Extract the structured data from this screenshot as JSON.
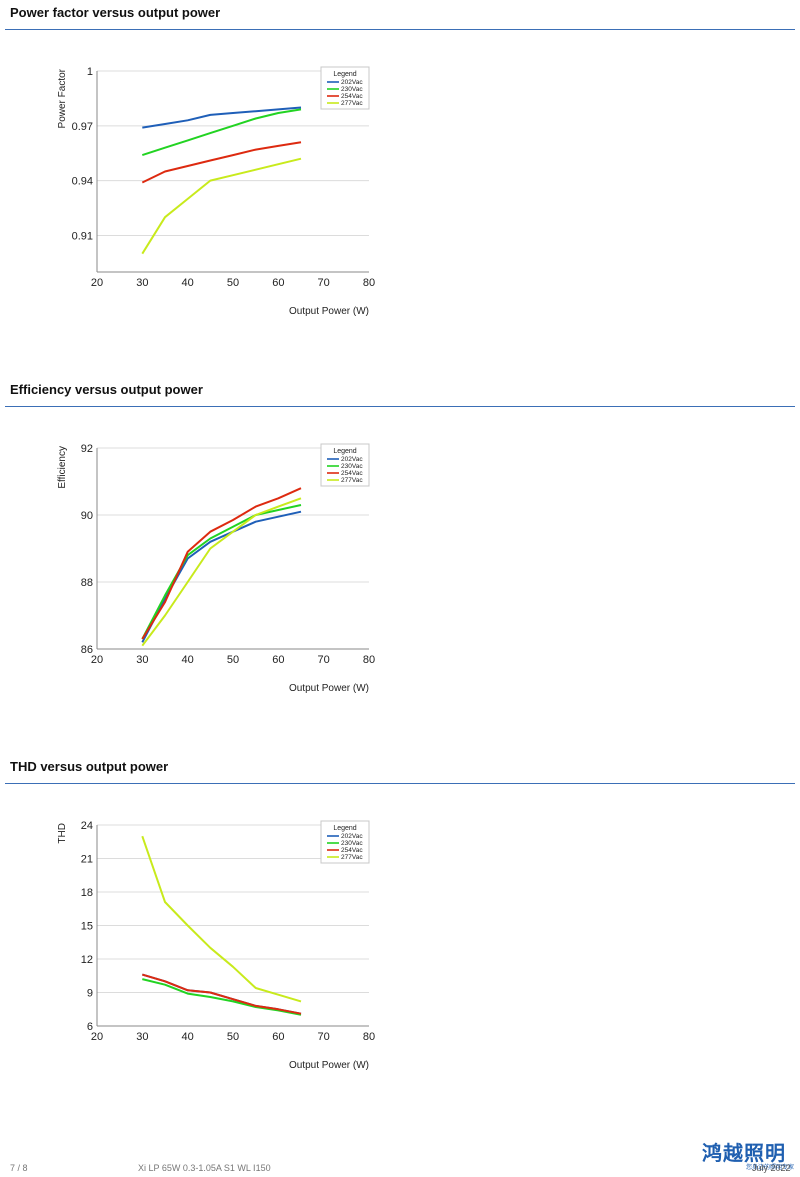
{
  "sections": [
    {
      "title": "Power factor versus output power"
    },
    {
      "title": "Efficiency versus output power"
    },
    {
      "title": "THD versus output power"
    }
  ],
  "chart_data": [
    {
      "type": "line",
      "ylabel": "Power Factor",
      "xlabel": "Output Power (W)",
      "xlim": [
        20,
        80
      ],
      "ylim": [
        0.89,
        1
      ],
      "xticks": [
        "20",
        "30",
        "40",
        "50",
        "60",
        "70",
        "80"
      ],
      "yticks": [
        {
          "v": 1,
          "label": "1"
        },
        {
          "v": 0.97,
          "label": "0.97"
        },
        {
          "v": 0.94,
          "label": "0.94"
        },
        {
          "v": 0.91,
          "label": "0.91"
        }
      ],
      "legend_title": "Legend",
      "legend_position": "top-right",
      "series": [
        {
          "name": "202Vac",
          "color": "#1f5fb8",
          "x": [
            30,
            35,
            40,
            45,
            50,
            55,
            60,
            65
          ],
          "y": [
            0.969,
            0.971,
            0.973,
            0.976,
            0.977,
            0.978,
            0.979,
            0.98
          ]
        },
        {
          "name": "230Vac",
          "color": "#22d322",
          "x": [
            30,
            35,
            40,
            45,
            50,
            55,
            60,
            65
          ],
          "y": [
            0.954,
            0.958,
            0.962,
            0.966,
            0.97,
            0.974,
            0.977,
            0.979
          ]
        },
        {
          "name": "254Vac",
          "color": "#dd2a10",
          "x": [
            30,
            35,
            40,
            45,
            50,
            55,
            60,
            65
          ],
          "y": [
            0.939,
            0.945,
            0.948,
            0.951,
            0.954,
            0.957,
            0.959,
            0.961
          ]
        },
        {
          "name": "277Vac",
          "color": "#c8ea1c",
          "x": [
            30,
            35,
            40,
            45,
            50,
            55,
            60,
            65
          ],
          "y": [
            0.9,
            0.92,
            0.93,
            0.94,
            0.943,
            0.946,
            0.949,
            0.952
          ]
        }
      ]
    },
    {
      "type": "line",
      "ylabel": "Efficiency",
      "xlabel": "Output Power (W)",
      "xlim": [
        20,
        80
      ],
      "ylim": [
        86,
        92
      ],
      "xticks": [
        "20",
        "30",
        "40",
        "50",
        "60",
        "70",
        "80"
      ],
      "yticks": [
        {
          "v": 92,
          "label": "92"
        },
        {
          "v": 90,
          "label": "90"
        },
        {
          "v": 88,
          "label": "88"
        },
        {
          "v": 86,
          "label": "86"
        }
      ],
      "legend_title": "Legend",
      "legend_position": "top-right",
      "series": [
        {
          "name": "202Vac",
          "color": "#1f5fb8",
          "x": [
            30,
            35,
            40,
            45,
            50,
            55,
            60,
            65
          ],
          "y": [
            86.2,
            87.5,
            88.7,
            89.2,
            89.5,
            89.8,
            89.95,
            90.1
          ]
        },
        {
          "name": "230Vac",
          "color": "#22d322",
          "x": [
            30,
            35,
            40,
            45,
            50,
            55,
            60,
            65
          ],
          "y": [
            86.3,
            87.6,
            88.8,
            89.3,
            89.65,
            90.0,
            90.15,
            90.3
          ]
        },
        {
          "name": "254Vac",
          "color": "#dd2a10",
          "x": [
            30,
            35,
            40,
            45,
            50,
            55,
            60,
            65
          ],
          "y": [
            86.3,
            87.4,
            88.9,
            89.5,
            89.85,
            90.25,
            90.5,
            90.8
          ]
        },
        {
          "name": "277Vac",
          "color": "#c8ea1c",
          "x": [
            30,
            35,
            40,
            45,
            50,
            55,
            60,
            65
          ],
          "y": [
            86.1,
            87.0,
            88.0,
            89.0,
            89.5,
            90.0,
            90.25,
            90.5
          ]
        }
      ]
    },
    {
      "type": "line",
      "ylabel": "THD",
      "xlabel": "Output Power (W)",
      "xlim": [
        20,
        80
      ],
      "ylim": [
        6,
        24
      ],
      "xticks": [
        "20",
        "30",
        "40",
        "50",
        "60",
        "70",
        "80"
      ],
      "yticks": [
        {
          "v": 24,
          "label": "24"
        },
        {
          "v": 21,
          "label": "21"
        },
        {
          "v": 18,
          "label": "18"
        },
        {
          "v": 15,
          "label": "15"
        },
        {
          "v": 12,
          "label": "12"
        },
        {
          "v": 9,
          "label": "9"
        },
        {
          "v": 6,
          "label": "6"
        }
      ],
      "legend_title": "Legend",
      "legend_position": "top-right",
      "series": [
        {
          "name": "202Vac",
          "color": "#1f5fb8",
          "x": [
            30,
            35,
            40,
            45,
            50,
            55,
            60,
            65
          ],
          "y": [
            10.6,
            10.0,
            9.2,
            9.0,
            8.4,
            7.8,
            7.5,
            7.1
          ]
        },
        {
          "name": "230Vac",
          "color": "#22d322",
          "x": [
            30,
            35,
            40,
            45,
            50,
            55,
            60,
            65
          ],
          "y": [
            10.2,
            9.7,
            8.9,
            8.6,
            8.2,
            7.7,
            7.4,
            7.0
          ]
        },
        {
          "name": "254Vac",
          "color": "#dd2a10",
          "x": [
            30,
            35,
            40,
            45,
            50,
            55,
            60,
            65
          ],
          "y": [
            10.6,
            10.0,
            9.2,
            9.0,
            8.4,
            7.8,
            7.5,
            7.1
          ]
        },
        {
          "name": "277Vac",
          "color": "#c8ea1c",
          "x": [
            30,
            35,
            40,
            45,
            50,
            55,
            60,
            65
          ],
          "y": [
            23.0,
            17.1,
            15.0,
            13.0,
            11.3,
            9.4,
            8.8,
            8.2
          ]
        }
      ]
    }
  ],
  "footer": {
    "page": "7 / 8",
    "product": "Xi LP 65W 0.3-1.05A S1 WL I150",
    "date": "July 2022",
    "logo": "鸿越照明",
    "logo_sub": "您身边的照明专家"
  }
}
